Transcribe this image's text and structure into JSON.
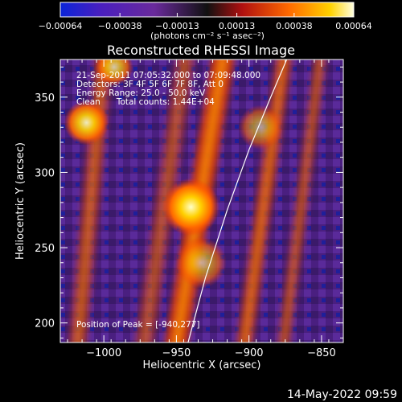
{
  "chart_data": {
    "type": "heatmap",
    "title": "Reconstructed RHESSI Image",
    "xlabel": "Heliocentric X (arcsec)",
    "ylabel": "Heliocentric Y (arcsec)",
    "xlim": [
      -1030,
      -835
    ],
    "ylim": [
      187,
      375
    ],
    "xticks": [
      -1000,
      -950,
      -900,
      -850
    ],
    "xtick_labels": [
      "−1000",
      "−950",
      "−900",
      "−850"
    ],
    "yticks": [
      200,
      250,
      300,
      350
    ],
    "ytick_labels": [
      "200",
      "250",
      "300",
      "350"
    ],
    "colorbar": {
      "ticks": [
        -0.00064,
        -0.00038,
        -0.00013,
        0.00013,
        0.00038,
        0.00064
      ],
      "tick_labels": [
        "−0.00064",
        "−0.00038",
        "−0.00013",
        "0.00013",
        "0.00038",
        "0.00064"
      ],
      "unit_label": "(photons cm⁻² s⁻¹ asec⁻²)",
      "range": [
        -0.00064,
        0.00064
      ]
    },
    "annotations": [
      "21-Sep-2011 07:05:32.000 to 07:09:48.000",
      "Detectors: 3F 4F 5F 6F 7F 8F, Att 0",
      "Energy Range: 25.0 - 50.0 keV",
      "Clean      Total counts: 1.44E+04"
    ],
    "peak_label": "Position of Peak = [-940,277]",
    "peak": {
      "x": -940,
      "y": 277
    },
    "limb_curve": {
      "x": [
        -942,
        -930,
        -915,
        -900,
        -885,
        -874
      ],
      "y": [
        187,
        230,
        275,
        315,
        350,
        375
      ]
    },
    "ridges": [
      {
        "x0": -1018,
        "y0": 187,
        "x1": -1000,
        "y1": 375,
        "w": 22,
        "a": 0.55
      },
      {
        "x0": -972,
        "y0": 187,
        "x1": -944,
        "y1": 375,
        "w": 24,
        "a": 0.45
      },
      {
        "x0": -950,
        "y0": 187,
        "x1": -918,
        "y1": 375,
        "w": 28,
        "a": 0.85
      },
      {
        "x0": -903,
        "y0": 187,
        "x1": -876,
        "y1": 375,
        "w": 20,
        "a": 0.65
      },
      {
        "x0": -876,
        "y0": 187,
        "x1": -851,
        "y1": 375,
        "w": 16,
        "a": 0.5
      }
    ],
    "bright_spots": [
      {
        "x": -940,
        "y": 277,
        "r": 9,
        "a": 1.0
      },
      {
        "x": -1012,
        "y": 333,
        "r": 7,
        "a": 0.9
      },
      {
        "x": -993,
        "y": 370,
        "r": 6,
        "a": 0.75
      },
      {
        "x": -933,
        "y": 240,
        "r": 8,
        "a": 0.6
      },
      {
        "x": -892,
        "y": 330,
        "r": 7,
        "a": 0.55
      }
    ]
  },
  "footer": {
    "timestamp": "14-May-2022 09:59"
  }
}
